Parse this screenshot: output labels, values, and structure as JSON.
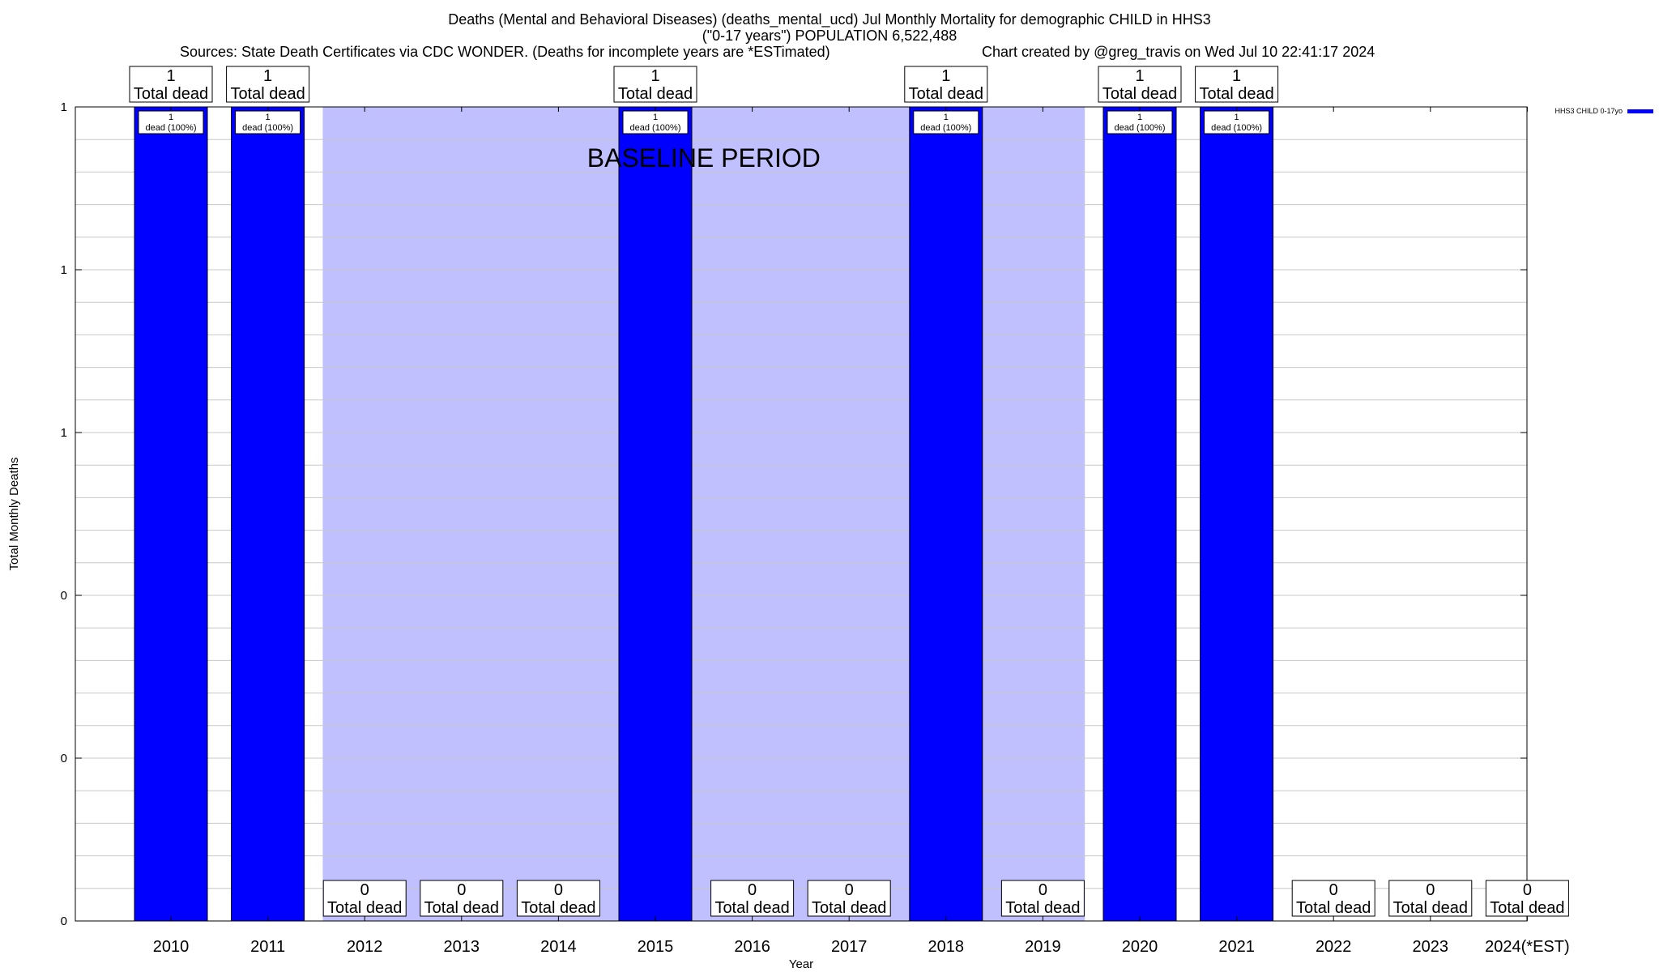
{
  "chart_data": {
    "type": "bar",
    "title_lines": [
      "Deaths (Mental and Behavioral Diseases) (deaths_mental_ucd) Jul Monthly Mortality for demographic CHILD in HHS3",
      "(\"0-17 years\") POPULATION 6,522,488"
    ],
    "sources": "Sources: State Death Certificates via CDC WONDER. (Deaths for incomplete years are *ESTimated)",
    "credit": "Chart created by @greg_travis on Wed Jul 10 22:41:17 2024",
    "xlabel": "Year",
    "ylabel": "Total Monthly Deaths",
    "ylim": [
      0,
      1
    ],
    "ytick_labels": [
      "0",
      "0",
      "0",
      "1",
      "1",
      "1"
    ],
    "grid": true,
    "legend": {
      "placement": "top-right",
      "entry": "HHS3 CHILD 0-17yo",
      "color": "#0000ff"
    },
    "baseline_label": "BASELINE PERIOD",
    "baseline_range": [
      "2012",
      "2019"
    ],
    "categories": [
      "2010",
      "2011",
      "2012",
      "2013",
      "2014",
      "2015",
      "2016",
      "2017",
      "2018",
      "2019",
      "2020",
      "2021",
      "2022",
      "2023",
      "2024(*EST)"
    ],
    "values": [
      1,
      1,
      0,
      0,
      0,
      1,
      0,
      0,
      1,
      0,
      1,
      1,
      0,
      0,
      0
    ],
    "total_labels": [
      "1",
      "1",
      "0",
      "0",
      "0",
      "1",
      "0",
      "0",
      "1",
      "0",
      "1",
      "1",
      "0",
      "0",
      "0"
    ],
    "total_suffix": "Total dead",
    "bar_labels": [
      "1\ndead (100%)",
      "1\ndead (100%)",
      "",
      "",
      "",
      "1\ndead (100%)",
      "",
      "",
      "1\ndead (100%)",
      "",
      "1\ndead (100%)",
      "1\ndead (100%)",
      "",
      "",
      ""
    ],
    "colors": {
      "bar": "#0000ff",
      "baseline": "#c0c0ff",
      "grid": "#c8c8c8"
    }
  }
}
